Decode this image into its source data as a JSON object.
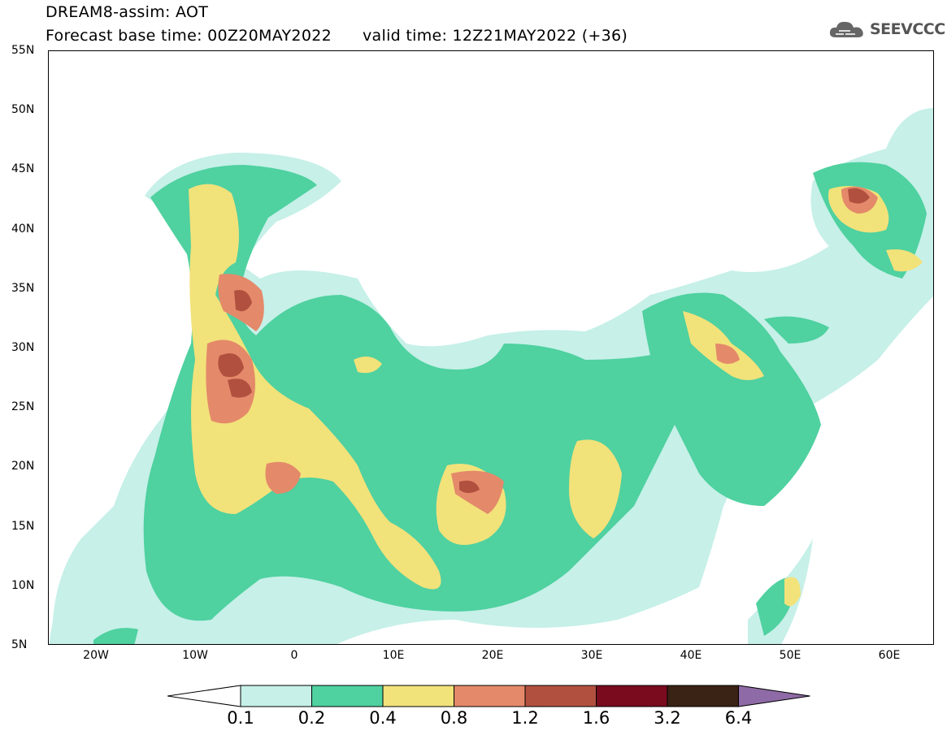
{
  "header": {
    "line1": "DREAM8-assim: AOT",
    "line2": "Forecast base time: 00Z20MAY2022      valid time: 12Z21MAY2022 (+36)"
  },
  "logo": {
    "text": "SEEVCCC",
    "icon": "cloud-icon"
  },
  "map": {
    "lat_ticks": [
      "55N",
      "50N",
      "45N",
      "40N",
      "35N",
      "30N",
      "25N",
      "20N",
      "15N",
      "10N",
      "5N"
    ],
    "lon_ticks": [
      "20W",
      "10W",
      "0",
      "10E",
      "20E",
      "30E",
      "40E",
      "50E",
      "60E"
    ],
    "colors": {
      "c01": "#c6f0e8",
      "c02": "#4fd1a0",
      "c04": "#f2e27a",
      "c08": "#e4896a",
      "c12": "#b1503f",
      "c16": "#7a0a1e",
      "c32": "#3a2214",
      "c64": "#8e6aa6"
    }
  },
  "colorbar": {
    "labels": [
      "0.1",
      "0.2",
      "0.4",
      "0.8",
      "1.2",
      "1.6",
      "3.2",
      "6.4"
    ],
    "colors": [
      "#ffffff",
      "#c6f0e8",
      "#4fd1a0",
      "#f2e27a",
      "#e4896a",
      "#b1503f",
      "#7a0a1e",
      "#3a2214",
      "#8e6aa6"
    ]
  }
}
